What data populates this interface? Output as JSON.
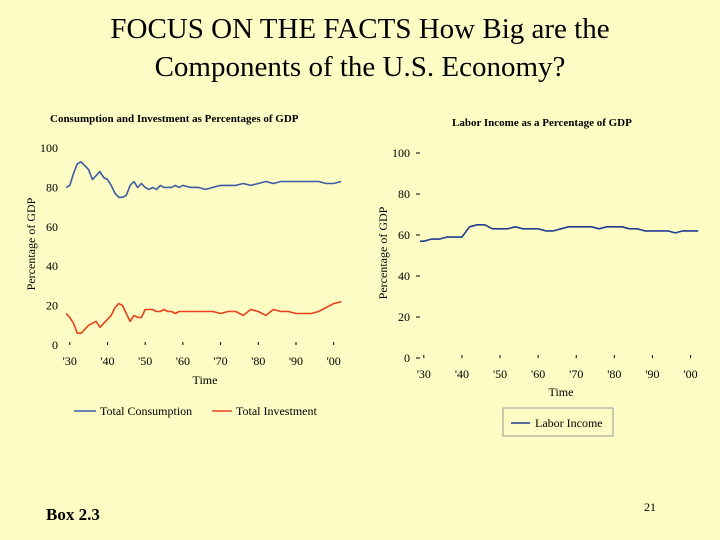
{
  "slide": {
    "title_line1": "FOCUS ON THE FACTS How Big are the",
    "title_line2": "Components of the U.S. Economy?",
    "box_label": "Box 2.3",
    "page_number": "21",
    "background": "#fcfcc4"
  },
  "chart_data": [
    {
      "type": "line",
      "title": "Consumption and Investment as Percentages of GDP",
      "xlabel": "Time",
      "ylabel": "Percentage of GDP",
      "xlim": [
        1929,
        2003
      ],
      "ylim": [
        0,
        100
      ],
      "x_ticks": [
        1930,
        1940,
        1950,
        1960,
        1970,
        1980,
        1990,
        2000
      ],
      "x_tick_labels": [
        "'30",
        "'40",
        "'50",
        "'60",
        "'70",
        "'80",
        "'90",
        "'00"
      ],
      "y_ticks": [
        0,
        20,
        40,
        60,
        80,
        100
      ],
      "legend_position": "bottom",
      "series": [
        {
          "name": "Total Consumption",
          "color": "#3b5ba6",
          "x": [
            1929,
            1930,
            1931,
            1932,
            1933,
            1934,
            1935,
            1936,
            1937,
            1938,
            1939,
            1940,
            1941,
            1942,
            1943,
            1944,
            1945,
            1946,
            1947,
            1948,
            1949,
            1950,
            1951,
            1952,
            1953,
            1954,
            1955,
            1956,
            1957,
            1958,
            1959,
            1960,
            1962,
            1964,
            1966,
            1968,
            1970,
            1972,
            1974,
            1976,
            1978,
            1980,
            1982,
            1984,
            1986,
            1988,
            1990,
            1992,
            1994,
            1996,
            1998,
            2000,
            2002
          ],
          "values": [
            80,
            81,
            87,
            92,
            93,
            91,
            89,
            84,
            86,
            88,
            85,
            84,
            81,
            77,
            75,
            75,
            76,
            81,
            83,
            80,
            82,
            80,
            79,
            80,
            79,
            81,
            80,
            80,
            80,
            81,
            80,
            81,
            80,
            80,
            79,
            80,
            81,
            81,
            81,
            82,
            81,
            82,
            83,
            82,
            83,
            83,
            83,
            83,
            83,
            83,
            82,
            82,
            83
          ]
        },
        {
          "name": "Total Investment",
          "color": "#e8401c",
          "x": [
            1929,
            1930,
            1931,
            1932,
            1933,
            1934,
            1935,
            1936,
            1937,
            1938,
            1939,
            1940,
            1941,
            1942,
            1943,
            1944,
            1945,
            1946,
            1947,
            1948,
            1949,
            1950,
            1951,
            1952,
            1953,
            1954,
            1955,
            1956,
            1957,
            1958,
            1959,
            1960,
            1962,
            1964,
            1966,
            1968,
            1970,
            1972,
            1974,
            1976,
            1978,
            1980,
            1982,
            1984,
            1986,
            1988,
            1990,
            1992,
            1994,
            1996,
            1998,
            2000,
            2002
          ],
          "values": [
            16,
            14,
            11,
            6,
            6,
            8,
            10,
            11,
            12,
            9,
            11,
            13,
            15,
            19,
            21,
            20,
            16,
            12,
            15,
            14,
            14,
            18,
            18,
            18,
            17,
            17,
            18,
            17,
            17,
            16,
            17,
            17,
            17,
            17,
            17,
            17,
            16,
            17,
            17,
            15,
            18,
            17,
            15,
            18,
            17,
            17,
            16,
            16,
            16,
            17,
            19,
            21,
            22
          ]
        }
      ]
    },
    {
      "type": "line",
      "title": "Labor Income as a Percentage of GDP",
      "xlabel": "Time",
      "ylabel": "Percentage of GDP",
      "xlim": [
        1929,
        2003
      ],
      "ylim": [
        0,
        100
      ],
      "x_ticks": [
        1930,
        1940,
        1950,
        1960,
        1970,
        1980,
        1990,
        2000
      ],
      "x_tick_labels": [
        "'30",
        "'40",
        "'50",
        "'60",
        "'70",
        "'80",
        "'90",
        "'00"
      ],
      "y_ticks": [
        0,
        20,
        40,
        60,
        80,
        100
      ],
      "legend_position": "bottom",
      "series": [
        {
          "name": "Labor Income",
          "color": "#1f3f8f",
          "x": [
            1929,
            1930,
            1932,
            1934,
            1936,
            1938,
            1940,
            1942,
            1944,
            1946,
            1948,
            1950,
            1952,
            1954,
            1956,
            1958,
            1960,
            1962,
            1964,
            1966,
            1968,
            1970,
            1972,
            1974,
            1976,
            1978,
            1980,
            1982,
            1984,
            1986,
            1988,
            1990,
            1992,
            1994,
            1996,
            1998,
            2000,
            2002
          ],
          "values": [
            57,
            57,
            58,
            58,
            59,
            59,
            59,
            64,
            65,
            65,
            63,
            63,
            63,
            64,
            63,
            63,
            63,
            62,
            62,
            63,
            64,
            64,
            64,
            64,
            63,
            64,
            64,
            64,
            63,
            63,
            62,
            62,
            62,
            62,
            61,
            62,
            62,
            62
          ]
        }
      ]
    }
  ]
}
